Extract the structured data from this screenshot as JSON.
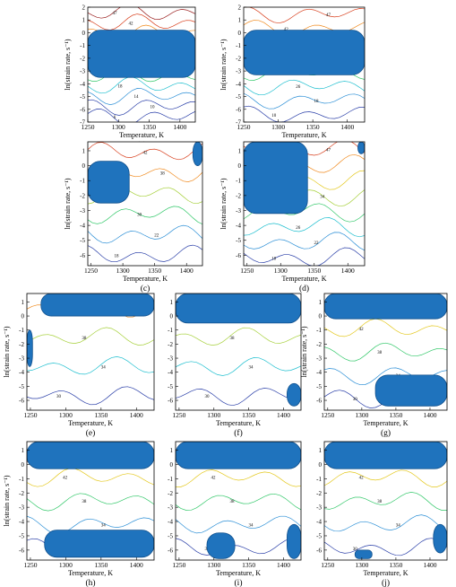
{
  "chart_data": [
    {
      "id": "a",
      "type": "contour",
      "panel_label": "(a)",
      "xlabel": "Temperature, K",
      "ylabel": "ln(strain rate, s⁻¹)",
      "x_ticks": [
        1250,
        1300,
        1350,
        1400
      ],
      "y_ticks": [
        2,
        1,
        0,
        -1,
        -2,
        -3,
        -4,
        -5,
        -6,
        -7
      ],
      "xlim": [
        1250,
        1425
      ],
      "ylim": [
        -7,
        2
      ],
      "contour_levels": [
        6,
        10,
        14,
        18,
        22,
        26,
        30,
        34,
        38,
        42,
        47
      ],
      "instability_regions": [
        {
          "x_range": [
            1250,
            1425
          ],
          "y_range": [
            -3.5,
            0.2
          ]
        }
      ]
    },
    {
      "id": "b",
      "type": "contour",
      "panel_label": "(b)",
      "xlabel": "Temperature, K",
      "ylabel": "ln(strain rate, s⁻¹)",
      "x_ticks": [
        1250,
        1300,
        1350,
        1400
      ],
      "y_ticks": [
        2,
        1,
        0,
        -1,
        -2,
        -3,
        -4,
        -5,
        -6,
        -7
      ],
      "xlim": [
        1250,
        1425
      ],
      "ylim": [
        -7,
        2
      ],
      "contour_levels": [
        10,
        18,
        26,
        30,
        34,
        38,
        42,
        47
      ],
      "instability_regions": [
        {
          "x_range": [
            1250,
            1425
          ],
          "y_range": [
            -3.3,
            0.2
          ]
        }
      ]
    },
    {
      "id": "c",
      "type": "contour",
      "panel_label": "(c)",
      "xlabel": "Temperature, K",
      "ylabel": "ln(strain rate, s⁻¹)",
      "x_ticks": [
        1250,
        1300,
        1350,
        1400
      ],
      "y_ticks": [
        1,
        0,
        -1,
        -2,
        -3,
        -4,
        -5,
        -6
      ],
      "xlim": [
        1245,
        1425
      ],
      "ylim": [
        -6.7,
        1.6
      ],
      "contour_levels": [
        18,
        22,
        30,
        34,
        38,
        42
      ],
      "instability_regions": [
        {
          "x_range": [
            1245,
            1310
          ],
          "y_range": [
            -2.5,
            0.3
          ]
        },
        {
          "x_range": [
            1410,
            1425
          ],
          "y_range": [
            0,
            1.6
          ]
        }
      ]
    },
    {
      "id": "d",
      "type": "contour",
      "panel_label": "(d)",
      "xlabel": "Temperature, K",
      "ylabel": "ln(strain rate, s⁻¹)",
      "x_ticks": [
        1250,
        1300,
        1350,
        1400
      ],
      "y_ticks": [
        1,
        0,
        -1,
        -2,
        -3,
        -4,
        -5,
        -6
      ],
      "xlim": [
        1245,
        1425
      ],
      "ylim": [
        -6.7,
        1.6
      ],
      "contour_levels": [
        18,
        22,
        26,
        30,
        34,
        38,
        42,
        47
      ],
      "instability_regions": [
        {
          "x_range": [
            1245,
            1340
          ],
          "y_range": [
            -3.2,
            1.6
          ]
        },
        {
          "x_range": [
            1415,
            1425
          ],
          "y_range": [
            0.8,
            1.6
          ]
        }
      ]
    },
    {
      "id": "e",
      "type": "contour",
      "panel_label": "(e)",
      "xlabel": "Temperature, K",
      "ylabel": "ln(strain rate, s⁻¹)",
      "x_ticks": [
        1250,
        1300,
        1350,
        1400
      ],
      "y_ticks": [
        1,
        0,
        -1,
        -2,
        -3,
        -4,
        -5,
        -6
      ],
      "xlim": [
        1245,
        1425
      ],
      "ylim": [
        -6.7,
        1.6
      ],
      "contour_levels": [
        30,
        34,
        38,
        42
      ],
      "instability_regions": [
        {
          "x_range": [
            1265,
            1425
          ],
          "y_range": [
            0,
            1.6
          ]
        },
        {
          "x_range": [
            1245,
            1253
          ],
          "y_range": [
            -3.6,
            -1
          ]
        }
      ]
    },
    {
      "id": "f",
      "type": "contour",
      "panel_label": "(f)",
      "xlabel": "Temperature, K",
      "ylabel": "",
      "x_ticks": [
        1250,
        1300,
        1350,
        1400
      ],
      "y_ticks": [
        1,
        0,
        -1,
        -2,
        -3,
        -4,
        -5,
        -6
      ],
      "xlim": [
        1245,
        1425
      ],
      "ylim": [
        -6.7,
        1.6
      ],
      "contour_levels": [
        30,
        34,
        38,
        42
      ],
      "instability_regions": [
        {
          "x_range": [
            1245,
            1425
          ],
          "y_range": [
            -0.5,
            1.6
          ]
        },
        {
          "x_range": [
            1405,
            1425
          ],
          "y_range": [
            -6.4,
            -4.8
          ]
        }
      ]
    },
    {
      "id": "g",
      "type": "contour",
      "panel_label": "(g)",
      "xlabel": "Temperature, K",
      "ylabel": "ln(strain rate, s⁻¹)",
      "x_ticks": [
        1250,
        1300,
        1350,
        1400
      ],
      "y_ticks": [
        1,
        0,
        -1,
        -2,
        -3,
        -4,
        -5,
        -6
      ],
      "xlim": [
        1245,
        1425
      ],
      "ylim": [
        -6.7,
        1.6
      ],
      "contour_levels": [
        30,
        34,
        38,
        42,
        47
      ],
      "instability_regions": [
        {
          "x_range": [
            1245,
            1425
          ],
          "y_range": [
            -0.2,
            1.6
          ]
        },
        {
          "x_range": [
            1320,
            1425
          ],
          "y_range": [
            -6.4,
            -4.2
          ]
        }
      ]
    },
    {
      "id": "h",
      "type": "contour",
      "panel_label": "(h)",
      "xlabel": "Temperature, K",
      "ylabel": "ln(strain rate, s⁻¹)",
      "x_ticks": [
        1250,
        1300,
        1350,
        1400
      ],
      "y_ticks": [
        1,
        0,
        -1,
        -2,
        -3,
        -4,
        -5,
        -6
      ],
      "xlim": [
        1245,
        1425
      ],
      "ylim": [
        -6.7,
        1.6
      ],
      "contour_levels": [
        30,
        34,
        38,
        42,
        47
      ],
      "instability_regions": [
        {
          "x_range": [
            1245,
            1425
          ],
          "y_range": [
            -0.3,
            1.6
          ]
        },
        {
          "x_range": [
            1270,
            1425
          ],
          "y_range": [
            -6.5,
            -4.6
          ]
        }
      ]
    },
    {
      "id": "i",
      "type": "contour",
      "panel_label": "(i)",
      "xlabel": "Temperature, K",
      "ylabel": "",
      "x_ticks": [
        1250,
        1300,
        1350,
        1400
      ],
      "y_ticks": [
        1,
        0,
        -1,
        -2,
        -3,
        -4,
        -5,
        -6
      ],
      "xlim": [
        1245,
        1425
      ],
      "ylim": [
        -6.7,
        1.6
      ],
      "contour_levels": [
        30,
        34,
        38,
        42,
        47
      ],
      "instability_regions": [
        {
          "x_range": [
            1245,
            1425
          ],
          "y_range": [
            -0.3,
            1.6
          ]
        },
        {
          "x_range": [
            1290,
            1330
          ],
          "y_range": [
            -6.6,
            -4.8
          ]
        },
        {
          "x_range": [
            1405,
            1425
          ],
          "y_range": [
            -6.6,
            -4.2
          ]
        }
      ]
    },
    {
      "id": "j",
      "type": "contour",
      "panel_label": "(j)",
      "xlabel": "Temperature, K",
      "ylabel": "",
      "x_ticks": [
        1250,
        1300,
        1350,
        1400
      ],
      "y_ticks": [
        1,
        0,
        -1,
        -2,
        -3,
        -4,
        -5,
        -6
      ],
      "xlim": [
        1245,
        1425
      ],
      "ylim": [
        -6.7,
        1.6
      ],
      "contour_levels": [
        30,
        34,
        38,
        42,
        47
      ],
      "instability_regions": [
        {
          "x_range": [
            1245,
            1425
          ],
          "y_range": [
            -0.3,
            1.6
          ]
        },
        {
          "x_range": [
            1290,
            1315
          ],
          "y_range": [
            -6.6,
            -6
          ]
        },
        {
          "x_range": [
            1405,
            1425
          ],
          "y_range": [
            -6.2,
            -4.2
          ]
        }
      ]
    }
  ],
  "colors": {
    "instability_fill": "#1f73bd",
    "instability_edge": "#0f4f8c",
    "axis": "#000000",
    "contours": [
      "#2a3fa8",
      "#2c8fd6",
      "#1fbfcf",
      "#33c86a",
      "#a6d03a",
      "#e4c81e",
      "#f08a1e",
      "#d8401e",
      "#9b2222"
    ]
  }
}
